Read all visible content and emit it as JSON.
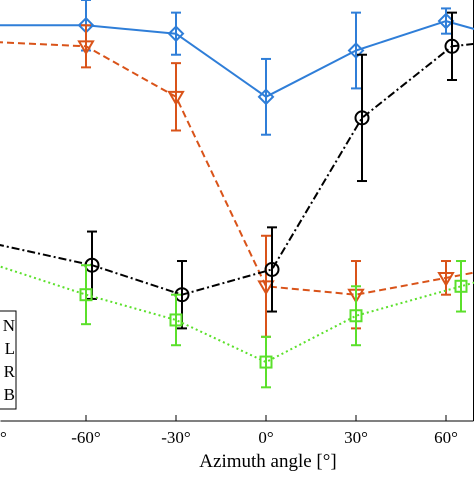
{
  "chart_data": {
    "type": "line",
    "xlabel": "Azimuth angle [°]",
    "ylabel": "",
    "title": "",
    "xlim": [
      -90,
      75
    ],
    "ylim": [
      0,
      100
    ],
    "x_ticks": [
      -90,
      -60,
      -30,
      0,
      30,
      60
    ],
    "x_tick_labels": [
      "-90°",
      "-60°",
      "-30°",
      "0°",
      "30°",
      "60°"
    ],
    "x_tick_labels_visible": [
      "°",
      "-60°",
      "-30°",
      "0°",
      "30°",
      "60°"
    ],
    "grid": false,
    "legend_placement": "bottom-left",
    "legend_entries": [
      "N",
      "L",
      "R",
      "B"
    ],
    "series": [
      {
        "key": "blue",
        "color": "#2F7ED8",
        "line_style": "solid",
        "marker": "diamond",
        "points": [
          {
            "x": -90,
            "y": 94,
            "err": 0
          },
          {
            "x": -60,
            "y": 94,
            "err": 6
          },
          {
            "x": -30,
            "y": 92,
            "err": 5
          },
          {
            "x": 0,
            "y": 77,
            "err": 9
          },
          {
            "x": 30,
            "y": 88,
            "err": 9
          },
          {
            "x": 60,
            "y": 95,
            "err": 3
          },
          {
            "x": 75,
            "y": 92,
            "err": 0
          }
        ]
      },
      {
        "key": "orange",
        "color": "#D95319",
        "line_style": "dashed",
        "marker": "triangle-down",
        "points": [
          {
            "x": -90,
            "y": 90,
            "err": 0
          },
          {
            "x": -60,
            "y": 89,
            "err": 5
          },
          {
            "x": -30,
            "y": 77,
            "err": 8
          },
          {
            "x": 0,
            "y": 32,
            "err": 12
          },
          {
            "x": 30,
            "y": 30,
            "err": 8
          },
          {
            "x": 60,
            "y": 34,
            "err": 4
          },
          {
            "x": 75,
            "y": 36,
            "err": 0
          }
        ]
      },
      {
        "key": "black",
        "color": "#000000",
        "line_style": "dashdot",
        "marker": "circle",
        "points": [
          {
            "x": -90,
            "y": 42,
            "err": 0
          },
          {
            "x": -58,
            "y": 37,
            "err": 8
          },
          {
            "x": -28,
            "y": 30,
            "err": 8
          },
          {
            "x": 2,
            "y": 36,
            "err": 10
          },
          {
            "x": 32,
            "y": 72,
            "err": 15
          },
          {
            "x": 62,
            "y": 89,
            "err": 8
          },
          {
            "x": 75,
            "y": 90,
            "err": 0
          }
        ]
      },
      {
        "key": "green",
        "color": "#5BE02B",
        "line_style": "dotted",
        "marker": "square",
        "points": [
          {
            "x": -90,
            "y": 37,
            "err": 0
          },
          {
            "x": -60,
            "y": 30,
            "err": 7
          },
          {
            "x": -30,
            "y": 24,
            "err": 6
          },
          {
            "x": 0,
            "y": 14,
            "err": 6
          },
          {
            "x": 30,
            "y": 25,
            "err": 7
          },
          {
            "x": 65,
            "y": 32,
            "err": 6
          },
          {
            "x": 75,
            "y": 34,
            "err": 0
          }
        ]
      }
    ]
  }
}
